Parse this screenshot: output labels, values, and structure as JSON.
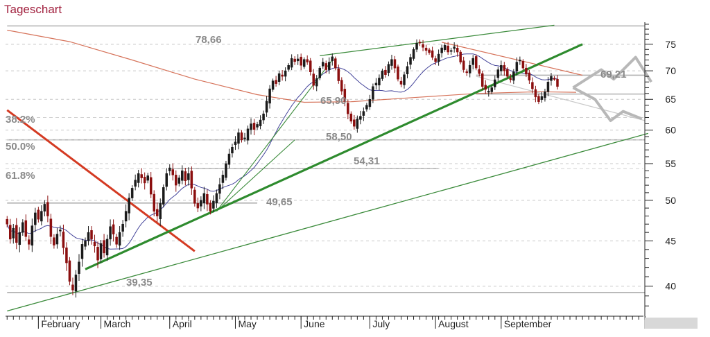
{
  "title": "Tageschart",
  "colors": {
    "up": "#1a1a1a",
    "down": "#8b0e0e",
    "trend_green": "#2e8b2e",
    "thin_green": "#3a8a3a",
    "resistance_red": "#d43a22",
    "ma200": "#d6735a",
    "ma50": "#44449a",
    "level_gray": "#b0b0b0",
    "projection_gray": "#b8b8b8"
  },
  "chart_data": {
    "type": "candlestick",
    "ylim": [
      37,
      80
    ],
    "yticks": [
      40,
      45,
      50,
      55,
      60,
      65,
      70,
      75
    ],
    "ytick_labels": [
      "40",
      "45",
      "50",
      "55",
      "60",
      "65",
      "70",
      "75"
    ],
    "months": [
      "February",
      "March",
      "April",
      "May",
      "June",
      "July",
      "August",
      "September"
    ],
    "month_starts": [
      10,
      30,
      52,
      73,
      94,
      116,
      137,
      158
    ],
    "x_end": 204,
    "levels": [
      {
        "label": "78,66",
        "value": 78.66
      },
      {
        "label": "69,21",
        "value": 69.21
      },
      {
        "label": "65,90",
        "value": 65.9
      },
      {
        "label": "58,50",
        "value": 58.5
      },
      {
        "label": "54,31",
        "value": 54.31
      },
      {
        "label": "49,65",
        "value": 49.65
      },
      {
        "label": "39,35",
        "value": 39.35
      }
    ],
    "fib_levels": [
      {
        "label": "38.2%",
        "value": 62.0
      },
      {
        "label": "50.0%",
        "value": 58.5
      },
      {
        "label": "61.8%",
        "value": 54.3
      }
    ],
    "closes": [
      47.0,
      45.2,
      46.5,
      44.8,
      46.0,
      47.2,
      45.5,
      44.6,
      46.8,
      48.4,
      47.6,
      48.6,
      49.5,
      48.0,
      45.5,
      44.5,
      45.8,
      46.3,
      44.2,
      42.5,
      40.5,
      39.6,
      41.2,
      42.6,
      44.6,
      45.0,
      46.0,
      45.2,
      44.4,
      42.8,
      44.7,
      43.6,
      45.2,
      46.7,
      45.8,
      44.6,
      46.0,
      47.0,
      48.6,
      50.3,
      51.6,
      52.7,
      53.6,
      53.0,
      52.3,
      53.3,
      50.8,
      48.6,
      48.0,
      49.6,
      51.7,
      53.6,
      54.4,
      53.4,
      52.0,
      53.0,
      54.0,
      52.6,
      53.6,
      51.6,
      49.6,
      49.0,
      50.0,
      50.9,
      49.5,
      48.6,
      49.9,
      50.9,
      52.1,
      53.4,
      55.0,
      56.4,
      57.4,
      58.2,
      59.6,
      58.5,
      58.8,
      60.2,
      61.0,
      60.1,
      60.9,
      61.6,
      62.6,
      64.7,
      66.8,
      68.2,
      67.7,
      69.5,
      69.0,
      70.0,
      71.0,
      72.3,
      71.7,
      72.2,
      71.0,
      72.1,
      71.6,
      69.8,
      67.4,
      68.6,
      70.5,
      71.6,
      70.2,
      71.6,
      72.6,
      70.5,
      68.2,
      66.4,
      64.6,
      62.6,
      61.4,
      60.6,
      61.8,
      62.2,
      63.0,
      64.0,
      65.0,
      67.2,
      67.8,
      68.7,
      70.0,
      69.3,
      71.2,
      72.1,
      70.5,
      68.5,
      67.6,
      69.3,
      70.8,
      72.5,
      74.0,
      75.2,
      75.3,
      74.4,
      73.8,
      73.4,
      72.5,
      71.7,
      73.1,
      74.3,
      74.8,
      73.5,
      73.8,
      74.5,
      73.5,
      71.6,
      70.2,
      69.7,
      71.0,
      72.3,
      70.5,
      69.5,
      67.2,
      66.7,
      66.4,
      67.0,
      68.4,
      70.2,
      71.0,
      70.0,
      69.0,
      68.4,
      69.8,
      71.6,
      72.0,
      70.5,
      69.4,
      68.3,
      66.8,
      65.4,
      64.6,
      65.5,
      66.3,
      68.0,
      69.0,
      68.6,
      67.2
    ],
    "annotations": {
      "resistance": {
        "from": [
          0,
          63.2
        ],
        "to": [
          60,
          43.8
        ]
      },
      "uptrend": {
        "from": [
          25,
          41.8
        ],
        "to": [
          184,
          75.0
        ]
      },
      "support_long": {
        "from": [
          0,
          37.5
        ],
        "to": [
          205,
          59.5
        ]
      },
      "channel_top": {
        "from": [
          100,
          72.8
        ],
        "to": [
          175,
          78.8
        ]
      },
      "fan_lines": [
        {
          "from": [
            67,
            48.6
          ],
          "to": [
            104,
            72.0
          ]
        },
        {
          "from": [
            67,
            48.6
          ],
          "to": [
            92,
            58.5
          ]
        }
      ],
      "projection_up": [
        [
          181,
          67.0
        ],
        [
          190,
          70.2
        ],
        [
          194,
          68.5
        ],
        [
          201,
          72.5
        ],
        [
          206,
          68.0
        ]
      ],
      "projection_down": [
        [
          181,
          67.0
        ],
        [
          188,
          65.0
        ],
        [
          193,
          61.5
        ],
        [
          197,
          63.0
        ],
        [
          203,
          61.8
        ]
      ]
    }
  }
}
